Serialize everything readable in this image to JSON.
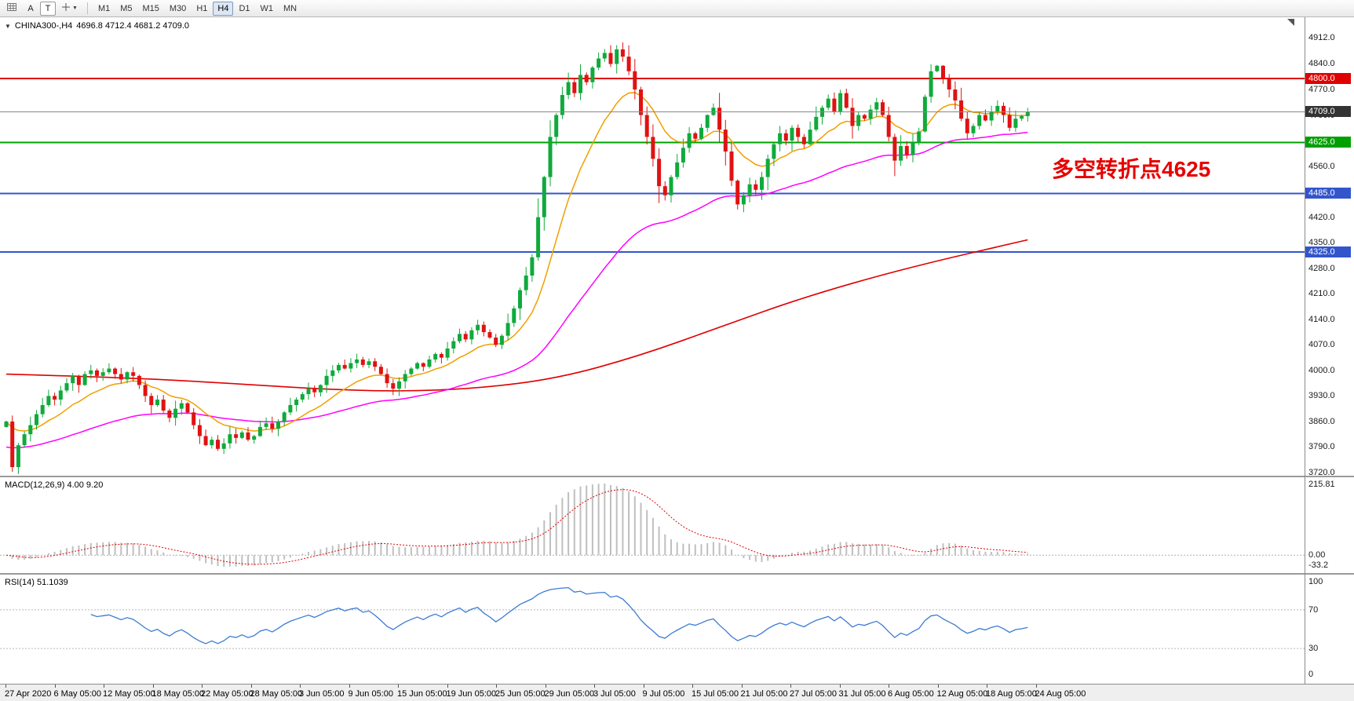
{
  "toolbar": {
    "font_button_label": "A",
    "text_button_label": "T",
    "timeframes": [
      "M1",
      "M5",
      "M15",
      "M30",
      "H1",
      "H4",
      "D1",
      "W1",
      "MN"
    ],
    "active_timeframe": "H4"
  },
  "chart_header": {
    "symbol": "CHINA300-,H4",
    "quote": "4696.8 4712.4 4681.2 4709.0"
  },
  "annotation": {
    "text": "多空转折点4625",
    "color": "#e60000"
  },
  "panels": {
    "macd": {
      "label": "MACD(12,26,9) 4.00 9.20",
      "axis_max": "215.81",
      "axis_zero": "0.00",
      "axis_min": "-33.2"
    },
    "rsi": {
      "label": "RSI(14) 51.1039",
      "axis": [
        "100",
        "70",
        "30",
        "0"
      ],
      "levels": [
        70,
        30
      ]
    }
  },
  "price_axis": {
    "min": 3720,
    "max": 4912,
    "ticks": [
      "4912.0",
      "4840.0",
      "4770.0",
      "4700.0",
      "4560.0",
      "4420.0",
      "4350.0",
      "4280.0",
      "4210.0",
      "4140.0",
      "4070.0",
      "4000.0",
      "3930.0",
      "3860.0",
      "3790.0",
      "3720.0"
    ],
    "badges": [
      {
        "price": 4800.0,
        "label": "4800.0",
        "color": "#e00000",
        "line": "#e00000",
        "line_width": 2
      },
      {
        "price": 4709.0,
        "label": "4709.0",
        "color": "#333333",
        "line": "#888888",
        "line_width": 1
      },
      {
        "price": 4625.0,
        "label": "4625.0",
        "color": "#00a000",
        "line": "#00a000",
        "line_width": 2
      },
      {
        "price": 4485.0,
        "label": "4485.0",
        "color": "#3355cc",
        "line": "#3355cc",
        "line_width": 2
      },
      {
        "price": 4325.0,
        "label": "4325.0",
        "color": "#3355cc",
        "line": "#3355cc",
        "line_width": 2
      }
    ]
  },
  "time_axis": {
    "labels": [
      "27 Apr 2020",
      "6 May 05:00",
      "12 May 05:00",
      "18 May 05:00",
      "22 May 05:00",
      "28 May 05:00",
      "3 Jun 05:00",
      "9 Jun 05:00",
      "15 Jun 05:00",
      "19 Jun 05:00",
      "25 Jun 05:00",
      "29 Jun 05:00",
      "3 Jul 05:00",
      "9 Jul 05:00",
      "15 Jul 05:00",
      "21 Jul 05:00",
      "27 Jul 05:00",
      "31 Jul 05:00",
      "6 Aug 05:00",
      "12 Aug 05:00",
      "18 Aug 05:00",
      "24 Aug 05:00"
    ]
  },
  "chart_data": {
    "type": "candlestick",
    "symbol": "CHINA300-",
    "timeframe": "H4",
    "last_ohlc": {
      "open": 4696.8,
      "high": 4712.4,
      "low": 4681.2,
      "close": 4709.0
    },
    "up_color": "#0faa3c",
    "down_color": "#e01212",
    "closes": [
      3860,
      3735,
      3795,
      3825,
      3850,
      3880,
      3905,
      3930,
      3920,
      3945,
      3965,
      3985,
      3960,
      3990,
      4000,
      3985,
      3995,
      4005,
      3990,
      3975,
      3995,
      3985,
      3960,
      3930,
      3905,
      3920,
      3890,
      3870,
      3895,
      3910,
      3885,
      3850,
      3820,
      3795,
      3810,
      3785,
      3800,
      3825,
      3815,
      3830,
      3810,
      3820,
      3845,
      3855,
      3840,
      3860,
      3885,
      3905,
      3920,
      3935,
      3950,
      3940,
      3960,
      3985,
      4000,
      4015,
      4005,
      4020,
      4030,
      4015,
      4025,
      4010,
      3990,
      3965,
      3950,
      3970,
      3990,
      4005,
      4020,
      4010,
      4030,
      4045,
      4035,
      4060,
      4080,
      4100,
      4085,
      4110,
      4125,
      4105,
      4090,
      4070,
      4095,
      4130,
      4170,
      4220,
      4260,
      4310,
      4420,
      4530,
      4640,
      4700,
      4755,
      4790,
      4760,
      4810,
      4790,
      4830,
      4855,
      4870,
      4840,
      4880,
      4860,
      4820,
      4770,
      4700,
      4640,
      4580,
      4505,
      4480,
      4530,
      4570,
      4610,
      4650,
      4635,
      4665,
      4700,
      4720,
      4660,
      4600,
      4520,
      4455,
      4480,
      4510,
      4495,
      4530,
      4580,
      4620,
      4650,
      4630,
      4665,
      4640,
      4620,
      4660,
      4695,
      4720,
      4745,
      4710,
      4760,
      4720,
      4670,
      4700,
      4690,
      4715,
      4735,
      4700,
      4640,
      4575,
      4615,
      4590,
      4625,
      4655,
      4750,
      4820,
      4835,
      4800,
      4770,
      4740,
      4690,
      4650,
      4670,
      4700,
      4685,
      4710,
      4725,
      4700,
      4665,
      4690,
      4697,
      4709
    ],
    "overlays": {
      "ma_fast": {
        "color": "#f0a000",
        "period": 13
      },
      "ma_mid": {
        "color": "#ff00ff",
        "period": 55
      },
      "ma_slow": {
        "color": "#e00000",
        "anchors": [
          [
            0,
            3990
          ],
          [
            0.1,
            3982
          ],
          [
            0.2,
            3968
          ],
          [
            0.3,
            3950
          ],
          [
            0.38,
            3942
          ],
          [
            0.46,
            3950
          ],
          [
            0.54,
            3978
          ],
          [
            0.62,
            4040
          ],
          [
            0.7,
            4120
          ],
          [
            0.78,
            4200
          ],
          [
            0.88,
            4280
          ],
          [
            1,
            4358
          ]
        ]
      }
    },
    "indicators": {
      "macd": {
        "fast": 12,
        "slow": 26,
        "signal": 9,
        "hist_color": "#bfbfbf",
        "signal_color": "#e00000",
        "value": 4.0,
        "signal_value": 9.2,
        "axis_max": 215.81,
        "axis_min": -33.2
      },
      "rsi": {
        "period": 14,
        "color": "#3b7bd4",
        "value": 51.1039,
        "levels": [
          70,
          30
        ]
      }
    }
  }
}
